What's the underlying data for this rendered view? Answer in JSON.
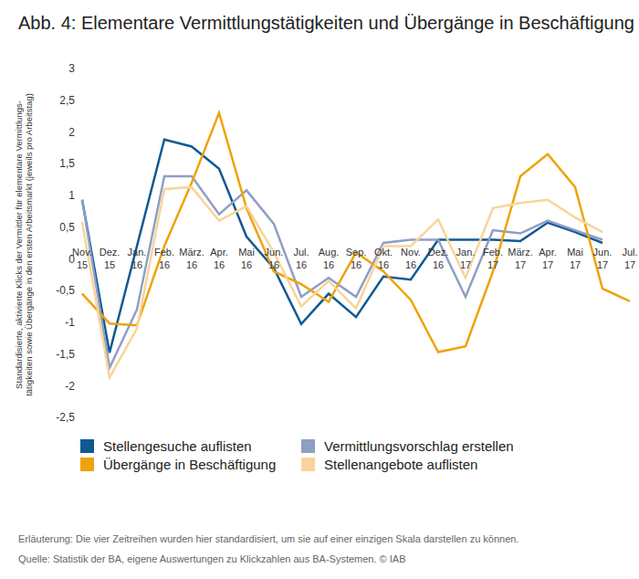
{
  "chart_data": {
    "type": "line",
    "title": "Abb. 4: Elementare Vermittlungstätigkeiten und Übergänge in Beschäftigung",
    "y_label": [
      "Standardisierte, aktivierte Klicks der Vermittler für elementare Vermittlungs-",
      "tätigkeiten sowie Übergänge in den ersten Arbeitsmarkt (jeweils pro Arbeitstag)"
    ],
    "categories": [
      "Nov. 15",
      "Dez. 15",
      "Jan. 16",
      "Feb. 16",
      "März. 16",
      "Apr. 16",
      "Mai 16",
      "Jun. 16",
      "Jul. 16",
      "Aug. 16",
      "Sep. 16",
      "Okt. 16",
      "Nov. 16",
      "Dez. 16",
      "Jan. 17",
      "Feb. 17",
      "März. 17",
      "Apr. 17",
      "Mai 17",
      "Jun. 17",
      "Jul. 17"
    ],
    "series": [
      {
        "name": "Stellengesuche auflisten",
        "color": "#0f5a92",
        "values": [
          0.93,
          -1.48,
          0.2,
          1.88,
          1.77,
          1.42,
          0.35,
          -0.15,
          -1.03,
          -0.55,
          -0.92,
          -0.28,
          -0.33,
          0.3,
          0.3,
          0.3,
          0.28,
          0.57,
          0.42,
          0.25,
          null
        ]
      },
      {
        "name": "Vermittlungsvorschlag erstellen",
        "color": "#8e9fc6",
        "values": [
          0.93,
          -1.72,
          -0.8,
          1.3,
          1.3,
          0.7,
          1.08,
          0.55,
          -0.6,
          -0.3,
          -0.6,
          0.25,
          0.3,
          0.3,
          -0.6,
          0.45,
          0.4,
          0.6,
          0.45,
          0.3,
          null
        ]
      },
      {
        "name": "Übergänge in Beschäftigung",
        "color": "#eea30a",
        "values": [
          -0.55,
          -1.02,
          -1.05,
          0.2,
          1.2,
          2.3,
          0.8,
          -0.2,
          -0.4,
          -0.68,
          0.1,
          -0.2,
          -0.65,
          -1.47,
          -1.38,
          -0.2,
          1.3,
          1.65,
          1.13,
          -0.47,
          -0.67
        ]
      },
      {
        "name": "Stellenangebote auflisten",
        "color": "#f8d49a",
        "values": [
          0.58,
          -1.87,
          -1.1,
          1.1,
          1.13,
          0.6,
          0.83,
          0.1,
          -0.75,
          -0.35,
          -0.78,
          0.2,
          0.2,
          0.62,
          -0.3,
          0.8,
          0.88,
          0.93,
          0.65,
          0.42,
          null
        ]
      }
    ],
    "ylim": [
      -2.5,
      3
    ],
    "yticks": [
      3,
      {
        "value": 2.5,
        "label": "2,5"
      },
      2,
      {
        "value": 1.5,
        "label": "1,5"
      },
      1,
      {
        "value": 0.5,
        "label": "0,5"
      },
      0,
      {
        "value": -0.5,
        "label": "-0,5"
      },
      -1,
      {
        "value": -1.5,
        "label": "-1,5"
      },
      -2,
      {
        "value": -2.5,
        "label": "-2,5"
      }
    ],
    "grid": false,
    "legend": "bottom",
    "caption": "Erläuterung: Die vier Zeitreihen wurden hier standardisiert, um sie auf einer einzigen Skala darstellen zu können.",
    "source": "Quelle: Statistik der BA, eigene Auswertungen zu Klickzahlen aus BA-Systemen. © IAB"
  }
}
